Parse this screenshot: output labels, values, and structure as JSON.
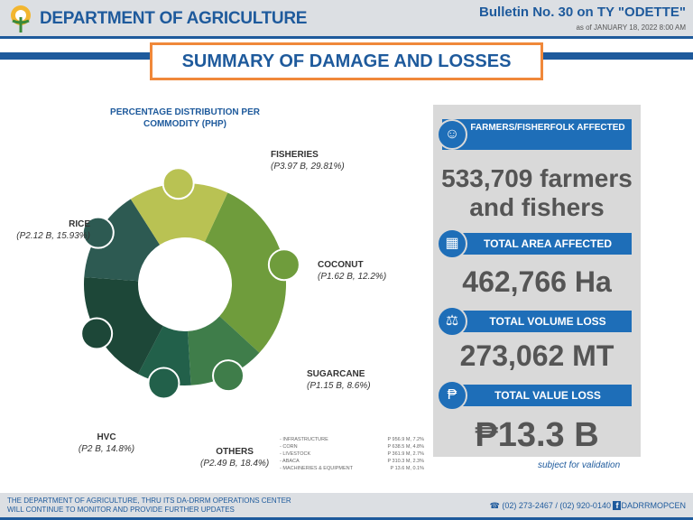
{
  "header": {
    "org": "DEPARTMENT OF AGRICULTURE",
    "bulletin": "Bulletin No. 30 on TY \"ODETTE\"",
    "as_of": "as of JANUARY 18, 2022 8:00 AM"
  },
  "title": "SUMMARY OF DAMAGE AND LOSSES",
  "chart_data": {
    "type": "pie",
    "title": "PERCENTAGE DISTRIBUTION PER COMMODITY (PHP)",
    "slices": [
      {
        "name": "FISHERIES",
        "label": "(P3.97 B, 29.81%)",
        "value": 29.81,
        "color": "#6f9c3c"
      },
      {
        "name": "COCONUT",
        "label": "(P1.62 B, 12.2%)",
        "value": 12.2,
        "color": "#3f7d4a"
      },
      {
        "name": "SUGARCANE",
        "label": "(P1.15 B, 8.6%)",
        "value": 8.6,
        "color": "#22604a"
      },
      {
        "name": "OTHERS",
        "label": "(P2.49 B, 18.4%)",
        "value": 18.4,
        "color": "#1d4738"
      },
      {
        "name": "HVC",
        "label": "(P2 B, 14.8%)",
        "value": 14.8,
        "color": "#2d5a52"
      },
      {
        "name": "RICE",
        "label": "(P2.12 B, 15.93%)",
        "value": 15.93,
        "color": "#b9c253"
      }
    ]
  },
  "others_breakdown": [
    {
      "name": "- INFRASTRUCTURE",
      "value": "P 956.9 M, 7.2%"
    },
    {
      "name": "- CORN",
      "value": "P 638.5 M, 4.8%"
    },
    {
      "name": "- LIVESTOCK",
      "value": "P 361.9 M, 2.7%"
    },
    {
      "name": "- ABACA",
      "value": "P 310.3 M, 2.3%"
    },
    {
      "name": "- MACHINERIES & EQUIPMENT",
      "value": "P 13.6 M, 0.1%"
    }
  ],
  "stats": {
    "farmers_label": "FARMERS/FISHERFOLK AFFECTED",
    "farmers_value1": "533,709 farmers",
    "farmers_value2": "and fishers",
    "area_label": "TOTAL AREA AFFECTED",
    "area_value": "462,766 Ha",
    "volume_label": "TOTAL VOLUME LOSS",
    "volume_value": "273,062 MT",
    "value_label": "TOTAL VALUE LOSS",
    "value_value": "₱13.3 B",
    "note": "subject for validation"
  },
  "footer": {
    "line1": "THE DEPARTMENT OF AGRICULTURE, THRU ITS DA-DRRM OPERATIONS CENTER",
    "line2": "WILL CONTINUE TO MONITOR AND PROVIDE FURTHER UPDATES",
    "phone": "(02) 273-2467 / (02) 920-0140",
    "fb": "DADRRMOPCEN"
  }
}
